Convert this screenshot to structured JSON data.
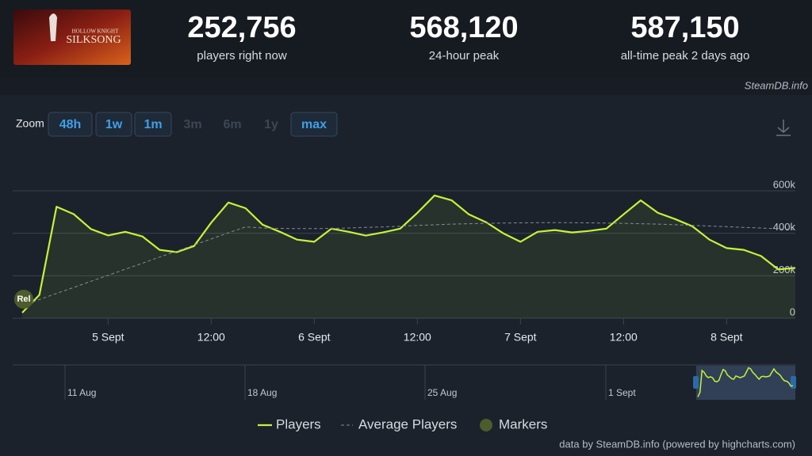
{
  "header": {
    "game_logo": {
      "line1": "HOLLOW KNIGHT",
      "line2": "SILKSONG"
    },
    "stats": [
      {
        "value": "252,756",
        "label": "players right now"
      },
      {
        "value": "568,120",
        "label": "24-hour peak"
      },
      {
        "value": "587,150",
        "label": "all-time peak 2 days ago"
      }
    ],
    "site": "SteamDB.info"
  },
  "zoom": {
    "label": "Zoom",
    "buttons": [
      {
        "label": "48h",
        "enabled": true
      },
      {
        "label": "1w",
        "enabled": true
      },
      {
        "label": "1m",
        "enabled": true
      },
      {
        "label": "3m",
        "enabled": false
      },
      {
        "label": "6m",
        "enabled": false
      },
      {
        "label": "1y",
        "enabled": false
      },
      {
        "label": "max",
        "enabled": true
      }
    ]
  },
  "chart_data": {
    "type": "line",
    "categories": [
      "4 Sept 14:00",
      "4 Sept 16:00",
      "4 Sept 18:00",
      "4 Sept 20:00",
      "4 Sept 22:00",
      "5 Sept 00:00",
      "5 Sept 02:00",
      "5 Sept 04:00",
      "5 Sept 06:00",
      "5 Sept 08:00",
      "5 Sept 10:00",
      "5 Sept 12:00",
      "5 Sept 14:00",
      "5 Sept 16:00",
      "5 Sept 18:00",
      "5 Sept 20:00",
      "5 Sept 22:00",
      "6 Sept 00:00",
      "6 Sept 02:00",
      "6 Sept 04:00",
      "6 Sept 06:00",
      "6 Sept 08:00",
      "6 Sept 10:00",
      "6 Sept 12:00",
      "6 Sept 14:00",
      "6 Sept 16:00",
      "6 Sept 18:00",
      "6 Sept 20:00",
      "6 Sept 22:00",
      "7 Sept 00:00",
      "7 Sept 02:00",
      "7 Sept 04:00",
      "7 Sept 06:00",
      "7 Sept 08:00",
      "7 Sept 10:00",
      "7 Sept 12:00",
      "7 Sept 14:00",
      "7 Sept 16:00",
      "7 Sept 18:00",
      "7 Sept 20:00",
      "7 Sept 22:00",
      "8 Sept 00:00",
      "8 Sept 02:00",
      "8 Sept 04:00",
      "8 Sept 06:00",
      "8 Sept 08:00"
    ],
    "series": [
      {
        "name": "Players",
        "color": "#c5f23a",
        "values": [
          26000,
          110000,
          525000,
          490000,
          420000,
          390000,
          407000,
          385000,
          322000,
          311000,
          340000,
          450000,
          545000,
          518000,
          440000,
          407000,
          370000,
          360000,
          422000,
          407000,
          389000,
          404000,
          422000,
          496000,
          578000,
          555000,
          489000,
          452000,
          400000,
          360000,
          407000,
          415000,
          404000,
          411000,
          422000,
          489000,
          555000,
          496000,
          467000,
          433000,
          370000,
          330000,
          322000,
          293000,
          230000,
          237000
        ]
      },
      {
        "name": "Average Players",
        "color": "#858b93",
        "dashed": true,
        "values": [
          60000,
          88000,
          117000,
          145000,
          174000,
          202000,
          231000,
          259000,
          288000,
          316000,
          345000,
          373000,
          402000,
          430000,
          425000,
          423000,
          422000,
          422000,
          423000,
          425000,
          428000,
          430000,
          433000,
          437000,
          440000,
          443000,
          445000,
          447000,
          448000,
          449000,
          450000,
          450000,
          450000,
          449000,
          448000,
          447000,
          445000,
          443000,
          440000,
          437000,
          434000,
          431000,
          428000,
          425000,
          421000,
          418000
        ]
      }
    ],
    "markers_legend": {
      "name": "Markers",
      "color": "#4d5c2c"
    },
    "markers": [
      {
        "label": "Rel",
        "x": "4 Sept 14:00"
      }
    ],
    "ylim": [
      0,
      600000
    ],
    "yticks": [
      0,
      {
        "value": 200000,
        "label": "200k"
      },
      {
        "value": 400000,
        "label": "400k"
      },
      {
        "value": 600000,
        "label": "600k"
      }
    ],
    "xticks": [
      {
        "value": "5 Sept 00:00",
        "label": "5 Sept"
      },
      {
        "value": "5 Sept 12:00",
        "label": "12:00"
      },
      {
        "value": "6 Sept 00:00",
        "label": "6 Sept"
      },
      {
        "value": "6 Sept 12:00",
        "label": "12:00"
      },
      {
        "value": "7 Sept 00:00",
        "label": "7 Sept"
      },
      {
        "value": "7 Sept 12:00",
        "label": "12:00"
      },
      {
        "value": "8 Sept 00:00",
        "label": "8 Sept"
      }
    ],
    "grid": true,
    "navigator": {
      "labels": [
        "11 Aug",
        "18 Aug",
        "25 Aug",
        "1 Sept"
      ]
    },
    "credit": "data by SteamDB.info (powered by highcharts.com)"
  }
}
